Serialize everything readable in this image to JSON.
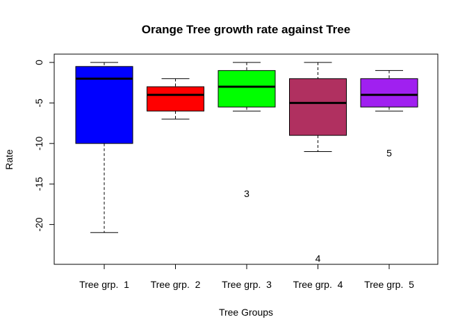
{
  "chart_data": {
    "type": "boxplot",
    "title": "Orange Tree growth rate against Tree",
    "xlabel": "Tree Groups",
    "ylabel": "Rate",
    "ylim": [
      -25,
      1
    ],
    "yticks": [
      0,
      -5,
      -10,
      -15,
      -20
    ],
    "grid": false,
    "categories": [
      "Tree grp.  1",
      "Tree grp.  2",
      "Tree grp.  3",
      "Tree grp.  4",
      "Tree grp.  5"
    ],
    "boxes": [
      {
        "name": "Tree grp.  1",
        "color": "#0000ff",
        "whisker_low": -21,
        "q1": -10,
        "median": -2,
        "q3": -0.5,
        "whisker_high": 0
      },
      {
        "name": "Tree grp.  2",
        "color": "#ff0000",
        "whisker_low": -7,
        "q1": -6,
        "median": -4,
        "q3": -3,
        "whisker_high": -2
      },
      {
        "name": "Tree grp.  3",
        "color": "#00ff00",
        "whisker_low": -6,
        "q1": -5.5,
        "median": -3,
        "q3": -1,
        "whisker_high": 0
      },
      {
        "name": "Tree grp.  4",
        "color": "#b03060",
        "whisker_low": -11,
        "q1": -9,
        "median": -5,
        "q3": -2,
        "whisker_high": 0
      },
      {
        "name": "Tree grp.  5",
        "color": "#a020f0",
        "whisker_low": -6,
        "q1": -5.5,
        "median": -4,
        "q3": -2,
        "whisker_high": -1
      }
    ],
    "outliers": [
      {
        "group": 3,
        "value": -16.2,
        "label": "3"
      },
      {
        "group": 4,
        "value": -24.2,
        "label": "4"
      },
      {
        "group": 5,
        "value": -11.2,
        "label": "5"
      }
    ]
  }
}
